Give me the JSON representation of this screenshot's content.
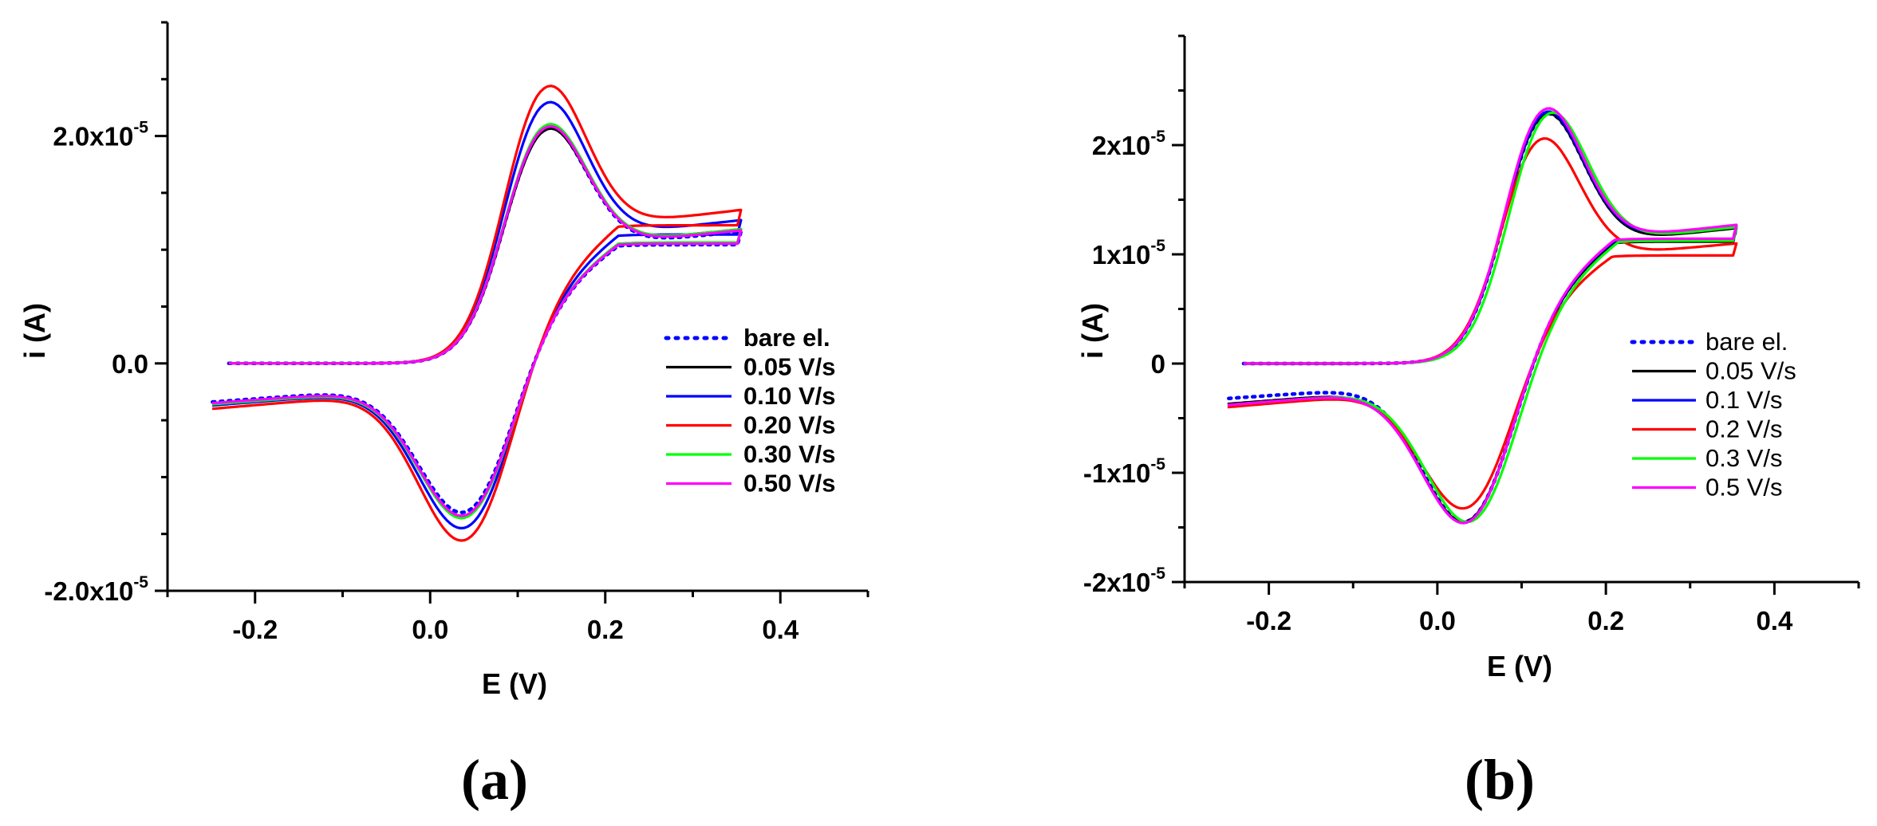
{
  "colors": {
    "bare": "#0000ff",
    "s005": "#000000",
    "s010": "#0000ff",
    "s020": "#ff0000",
    "s030": "#00ff00",
    "s050": "#ff00ff"
  },
  "chart_data": [
    {
      "type": "line",
      "panel_label": "(a)",
      "xlabel": "E (V)",
      "ylabel": "i (A)",
      "xlim": [
        -0.3,
        0.5
      ],
      "ylim": [
        -2e-05,
        3e-05
      ],
      "x_ticks": [
        {
          "value": -0.2,
          "label": "-0.2"
        },
        {
          "value": 0.0,
          "label": "0.0"
        },
        {
          "value": 0.2,
          "label": "0.2"
        },
        {
          "value": 0.4,
          "label": "0.4"
        }
      ],
      "y_ticks": [
        {
          "value": -2e-05,
          "mantissa": "-2.0x10",
          "exponent": "-5"
        },
        {
          "value": 0,
          "mantissa": "0.0",
          "exponent": ""
        },
        {
          "value": 2e-05,
          "mantissa": "2.0x10",
          "exponent": "-5"
        }
      ],
      "legend_position": "right",
      "series": [
        {
          "name": "bare el.",
          "color_key": "bare",
          "dash": "dotted",
          "ipa": 2.17e-05,
          "ipc": -1.33e-05,
          "end_ox": 1.16e-05,
          "start_red": -3.4e-06,
          "epa": 0.13,
          "epc": 0.04
        },
        {
          "name": "0.05 V/s",
          "color_key": "s005",
          "dash": "solid",
          "ipa": 2.16e-05,
          "ipc": -1.36e-05,
          "end_ox": 1.18e-05,
          "start_red": -3.6e-06,
          "epa": 0.13,
          "epc": 0.04
        },
        {
          "name": "0.10 V/s",
          "color_key": "s010",
          "dash": "solid",
          "ipa": 2.4e-05,
          "ipc": -1.47e-05,
          "end_ox": 1.26e-05,
          "start_red": -3.7e-06,
          "epa": 0.13,
          "epc": 0.04
        },
        {
          "name": "0.20 V/s",
          "color_key": "s020",
          "dash": "solid",
          "ipa": 2.55e-05,
          "ipc": -1.58e-05,
          "end_ox": 1.35e-05,
          "start_red": -4e-06,
          "epa": 0.13,
          "epc": 0.04
        },
        {
          "name": "0.30 V/s",
          "color_key": "s030",
          "dash": "solid",
          "ipa": 2.2e-05,
          "ipc": -1.38e-05,
          "end_ox": 1.18e-05,
          "start_red": -3.6e-06,
          "epa": 0.13,
          "epc": 0.04
        },
        {
          "name": "0.50 V/s",
          "color_key": "s050",
          "dash": "solid",
          "ipa": 2.18e-05,
          "ipc": -1.36e-05,
          "end_ox": 1.17e-05,
          "start_red": -3.5e-06,
          "epa": 0.13,
          "epc": 0.04
        }
      ]
    },
    {
      "type": "line",
      "panel_label": "(b)",
      "xlabel": "E (V)",
      "ylabel": "i (A)",
      "xlim": [
        -0.3,
        0.5
      ],
      "ylim": [
        -2e-05,
        3e-05
      ],
      "x_ticks": [
        {
          "value": -0.2,
          "label": "-0.2"
        },
        {
          "value": 0.0,
          "label": "0.0"
        },
        {
          "value": 0.2,
          "label": "0.2"
        },
        {
          "value": 0.4,
          "label": "0.4"
        }
      ],
      "y_ticks": [
        {
          "value": -2e-05,
          "mantissa": "-2x10",
          "exponent": "-5"
        },
        {
          "value": -1e-05,
          "mantissa": "-1x10",
          "exponent": "-5"
        },
        {
          "value": 0,
          "mantissa": "0",
          "exponent": ""
        },
        {
          "value": 1e-05,
          "mantissa": "1x10",
          "exponent": "-5"
        },
        {
          "value": 2e-05,
          "mantissa": "2x10",
          "exponent": "-5"
        }
      ],
      "legend_position": "right",
      "series": [
        {
          "name": "bare el.",
          "color_key": "bare",
          "dash": "dotted",
          "ipa": 2.39e-05,
          "ipc": -1.47e-05,
          "end_ox": 1.25e-05,
          "start_red": -3.2e-06,
          "epa": 0.125,
          "epc": 0.035
        },
        {
          "name": "0.05 V/s",
          "color_key": "s005",
          "dash": "solid",
          "ipa": 2.39e-05,
          "ipc": -1.47e-05,
          "end_ox": 1.24e-05,
          "start_red": -3.7e-06,
          "epa": 0.125,
          "epc": 0.035
        },
        {
          "name": "0.1 V/s",
          "color_key": "s010",
          "dash": "solid",
          "ipa": 2.41e-05,
          "ipc": -1.48e-05,
          "end_ox": 1.26e-05,
          "start_red": -3.8e-06,
          "epa": 0.125,
          "epc": 0.035
        },
        {
          "name": "0.2 V/s",
          "color_key": "s020",
          "dash": "solid",
          "ipa": 2.16e-05,
          "ipc": -1.35e-05,
          "end_ox": 1.1e-05,
          "start_red": -4e-06,
          "epa": 0.12,
          "epc": 0.035
        },
        {
          "name": "0.3 V/s",
          "color_key": "s030",
          "dash": "solid",
          "ipa": 2.4e-05,
          "ipc": -1.47e-05,
          "end_ox": 1.25e-05,
          "start_red": -3.8e-06,
          "epa": 0.13,
          "epc": 0.04
        },
        {
          "name": "0.5 V/s",
          "color_key": "s050",
          "dash": "solid",
          "ipa": 2.44e-05,
          "ipc": -1.48e-05,
          "end_ox": 1.27e-05,
          "start_red": -3.8e-06,
          "epa": 0.125,
          "epc": 0.035
        }
      ]
    }
  ]
}
